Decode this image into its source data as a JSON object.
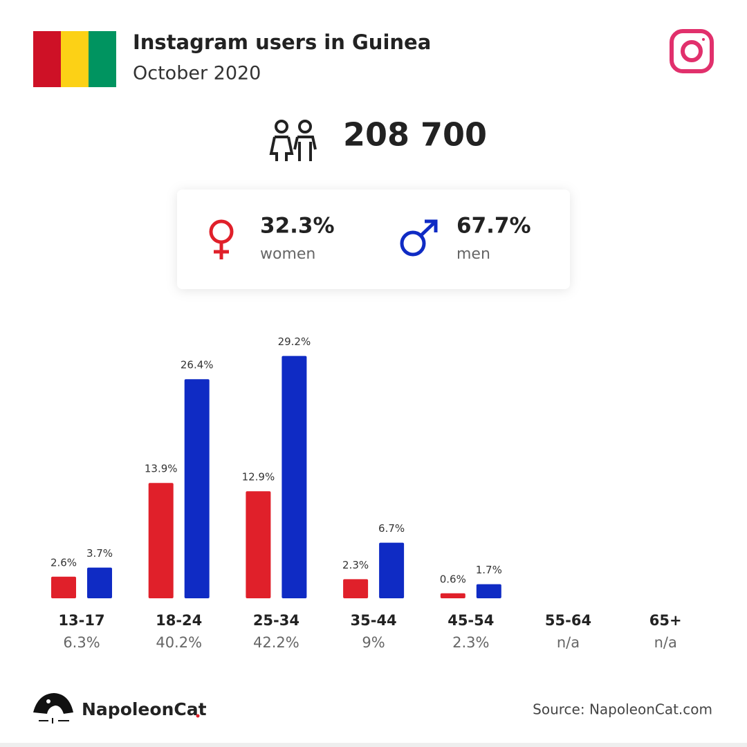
{
  "chart_data": {
    "type": "bar",
    "title": "Instagram users in Guinea",
    "subtitle": "October 2020",
    "categories": [
      "13-17",
      "18-24",
      "25-34",
      "35-44",
      "45-54",
      "55-64",
      "65+"
    ],
    "category_totals": [
      "6.3%",
      "40.2%",
      "42.2%",
      "9%",
      "2.3%",
      "n/a",
      "n/a"
    ],
    "series": [
      {
        "name": "women",
        "color": "#e0202a",
        "share": "32.3%",
        "values": [
          2.6,
          13.9,
          12.9,
          2.3,
          0.6,
          null,
          null
        ],
        "value_labels": [
          "2.6%",
          "13.9%",
          "12.9%",
          "2.3%",
          "0.6%",
          null,
          null
        ]
      },
      {
        "name": "men",
        "color": "#0f2bc4",
        "share": "67.7%",
        "values": [
          3.7,
          26.4,
          29.2,
          6.7,
          1.7,
          null,
          null
        ],
        "value_labels": [
          "3.7%",
          "26.4%",
          "29.2%",
          "6.7%",
          "1.7%",
          null,
          null
        ]
      }
    ],
    "ylim": [
      0,
      30
    ]
  },
  "total": "208 700",
  "footer": {
    "brand": "NapoleonCat",
    "source": "Source: NapoleonCat.com"
  }
}
